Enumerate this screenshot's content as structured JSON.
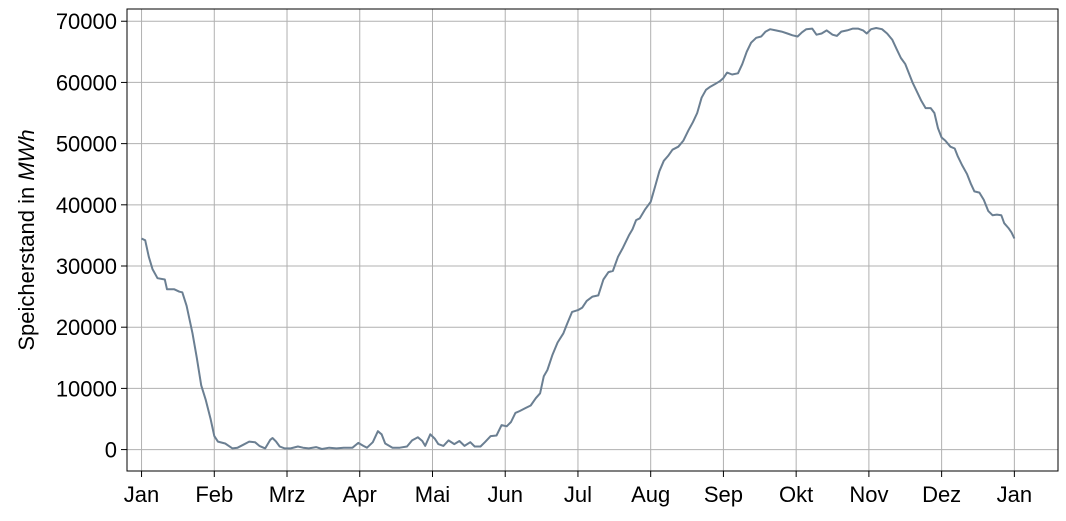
{
  "chart_data": {
    "type": "line",
    "title": "",
    "xlabel": "",
    "ylabel": "Speicherstand in MWh",
    "ylabel_parts": {
      "text": "Speicherstand in ",
      "unit": "MWh"
    },
    "ylim": [
      -3500,
      72000
    ],
    "xlim": [
      -0.2,
      12.6
    ],
    "grid": true,
    "xticks": [
      {
        "value": 0,
        "label": "Jan"
      },
      {
        "value": 1,
        "label": "Feb"
      },
      {
        "value": 2,
        "label": "Mrz"
      },
      {
        "value": 3,
        "label": "Apr"
      },
      {
        "value": 4,
        "label": "Mai"
      },
      {
        "value": 5,
        "label": "Jun"
      },
      {
        "value": 6,
        "label": "Jul"
      },
      {
        "value": 7,
        "label": "Aug"
      },
      {
        "value": 8,
        "label": "Sep"
      },
      {
        "value": 9,
        "label": "Okt"
      },
      {
        "value": 10,
        "label": "Nov"
      },
      {
        "value": 11,
        "label": "Dez"
      },
      {
        "value": 12,
        "label": "Jan"
      }
    ],
    "yticks": [
      {
        "value": 0,
        "label": "0"
      },
      {
        "value": 10000,
        "label": "10000"
      },
      {
        "value": 20000,
        "label": "20000"
      },
      {
        "value": 30000,
        "label": "30000"
      },
      {
        "value": 40000,
        "label": "40000"
      },
      {
        "value": 50000,
        "label": "50000"
      },
      {
        "value": 60000,
        "label": "60000"
      },
      {
        "value": 70000,
        "label": "70000"
      }
    ],
    "series": [
      {
        "color": "#6b7f92",
        "points": [
          [
            0.0,
            34500
          ],
          [
            0.05,
            34200
          ],
          [
            0.1,
            31500
          ],
          [
            0.15,
            29500
          ],
          [
            0.22,
            28000
          ],
          [
            0.32,
            27800
          ],
          [
            0.35,
            26200
          ],
          [
            0.45,
            26200
          ],
          [
            0.52,
            25800
          ],
          [
            0.56,
            25700
          ],
          [
            0.62,
            23500
          ],
          [
            0.7,
            19000
          ],
          [
            0.76,
            15000
          ],
          [
            0.82,
            10500
          ],
          [
            0.88,
            8200
          ],
          [
            0.95,
            5000
          ],
          [
            1.0,
            2200
          ],
          [
            1.05,
            1300
          ],
          [
            1.15,
            1000
          ],
          [
            1.25,
            200
          ],
          [
            1.32,
            300
          ],
          [
            1.4,
            800
          ],
          [
            1.48,
            1300
          ],
          [
            1.56,
            1200
          ],
          [
            1.62,
            600
          ],
          [
            1.7,
            200
          ],
          [
            1.77,
            1600
          ],
          [
            1.8,
            1900
          ],
          [
            1.85,
            1300
          ],
          [
            1.9,
            500
          ],
          [
            1.97,
            200
          ],
          [
            2.05,
            200
          ],
          [
            2.15,
            500
          ],
          [
            2.22,
            300
          ],
          [
            2.3,
            200
          ],
          [
            2.4,
            400
          ],
          [
            2.48,
            100
          ],
          [
            2.58,
            300
          ],
          [
            2.68,
            200
          ],
          [
            2.78,
            300
          ],
          [
            2.9,
            300
          ],
          [
            2.98,
            1100
          ],
          [
            3.05,
            600
          ],
          [
            3.1,
            300
          ],
          [
            3.18,
            1200
          ],
          [
            3.25,
            3000
          ],
          [
            3.3,
            2500
          ],
          [
            3.35,
            1000
          ],
          [
            3.45,
            300
          ],
          [
            3.55,
            300
          ],
          [
            3.65,
            500
          ],
          [
            3.72,
            1500
          ],
          [
            3.8,
            2000
          ],
          [
            3.86,
            1400
          ],
          [
            3.9,
            600
          ],
          [
            3.97,
            2500
          ],
          [
            4.03,
            1800
          ],
          [
            4.08,
            900
          ],
          [
            4.15,
            600
          ],
          [
            4.22,
            1500
          ],
          [
            4.3,
            900
          ],
          [
            4.37,
            1400
          ],
          [
            4.44,
            600
          ],
          [
            4.52,
            1200
          ],
          [
            4.58,
            500
          ],
          [
            4.66,
            500
          ],
          [
            4.72,
            1200
          ],
          [
            4.8,
            2200
          ],
          [
            4.88,
            2300
          ],
          [
            4.95,
            4000
          ],
          [
            5.02,
            3800
          ],
          [
            5.08,
            4500
          ],
          [
            5.14,
            6000
          ],
          [
            5.2,
            6300
          ],
          [
            5.28,
            6800
          ],
          [
            5.35,
            7200
          ],
          [
            5.42,
            8400
          ],
          [
            5.48,
            9200
          ],
          [
            5.53,
            12000
          ],
          [
            5.58,
            13000
          ],
          [
            5.65,
            15500
          ],
          [
            5.72,
            17500
          ],
          [
            5.8,
            19000
          ],
          [
            5.85,
            20500
          ],
          [
            5.92,
            22500
          ],
          [
            6.0,
            22800
          ],
          [
            6.06,
            23200
          ],
          [
            6.12,
            24300
          ],
          [
            6.2,
            25000
          ],
          [
            6.28,
            25200
          ],
          [
            6.35,
            27800
          ],
          [
            6.42,
            29000
          ],
          [
            6.48,
            29200
          ],
          [
            6.55,
            31500
          ],
          [
            6.62,
            33000
          ],
          [
            6.7,
            35000
          ],
          [
            6.75,
            36000
          ],
          [
            6.8,
            37500
          ],
          [
            6.85,
            37800
          ],
          [
            6.92,
            39200
          ],
          [
            7.0,
            40500
          ],
          [
            7.06,
            43000
          ],
          [
            7.12,
            45500
          ],
          [
            7.18,
            47200
          ],
          [
            7.24,
            48000
          ],
          [
            7.3,
            49000
          ],
          [
            7.38,
            49500
          ],
          [
            7.45,
            50500
          ],
          [
            7.52,
            52200
          ],
          [
            7.58,
            53500
          ],
          [
            7.64,
            55000
          ],
          [
            7.7,
            57500
          ],
          [
            7.76,
            58800
          ],
          [
            7.82,
            59300
          ],
          [
            7.88,
            59700
          ],
          [
            7.95,
            60200
          ],
          [
            8.0,
            60700
          ],
          [
            8.05,
            61600
          ],
          [
            8.12,
            61300
          ],
          [
            8.2,
            61500
          ],
          [
            8.26,
            63000
          ],
          [
            8.32,
            65000
          ],
          [
            8.38,
            66500
          ],
          [
            8.45,
            67300
          ],
          [
            8.52,
            67500
          ],
          [
            8.58,
            68300
          ],
          [
            8.64,
            68700
          ],
          [
            8.72,
            68500
          ],
          [
            8.8,
            68300
          ],
          [
            8.88,
            68000
          ],
          [
            8.95,
            67700
          ],
          [
            9.02,
            67500
          ],
          [
            9.08,
            68200
          ],
          [
            9.14,
            68700
          ],
          [
            9.22,
            68800
          ],
          [
            9.28,
            67800
          ],
          [
            9.35,
            68000
          ],
          [
            9.42,
            68500
          ],
          [
            9.5,
            67800
          ],
          [
            9.56,
            67600
          ],
          [
            9.62,
            68300
          ],
          [
            9.7,
            68500
          ],
          [
            9.78,
            68800
          ],
          [
            9.85,
            68800
          ],
          [
            9.92,
            68500
          ],
          [
            9.97,
            68000
          ],
          [
            10.03,
            68700
          ],
          [
            10.1,
            68900
          ],
          [
            10.18,
            68700
          ],
          [
            10.25,
            68000
          ],
          [
            10.32,
            67000
          ],
          [
            10.38,
            65500
          ],
          [
            10.44,
            64000
          ],
          [
            10.5,
            63000
          ],
          [
            10.55,
            61500
          ],
          [
            10.6,
            60000
          ],
          [
            10.66,
            58500
          ],
          [
            10.72,
            57000
          ],
          [
            10.78,
            55800
          ],
          [
            10.85,
            55800
          ],
          [
            10.9,
            55000
          ],
          [
            10.95,
            52500
          ],
          [
            11.0,
            51000
          ],
          [
            11.05,
            50500
          ],
          [
            11.12,
            49500
          ],
          [
            11.18,
            49200
          ],
          [
            11.22,
            48000
          ],
          [
            11.28,
            46500
          ],
          [
            11.35,
            45000
          ],
          [
            11.4,
            43500
          ],
          [
            11.45,
            42200
          ],
          [
            11.52,
            42000
          ],
          [
            11.58,
            40800
          ],
          [
            11.64,
            39000
          ],
          [
            11.7,
            38300
          ],
          [
            11.76,
            38400
          ],
          [
            11.82,
            38300
          ],
          [
            11.86,
            37000
          ],
          [
            11.92,
            36200
          ],
          [
            11.96,
            35500
          ],
          [
            12.0,
            34500
          ]
        ]
      }
    ]
  }
}
